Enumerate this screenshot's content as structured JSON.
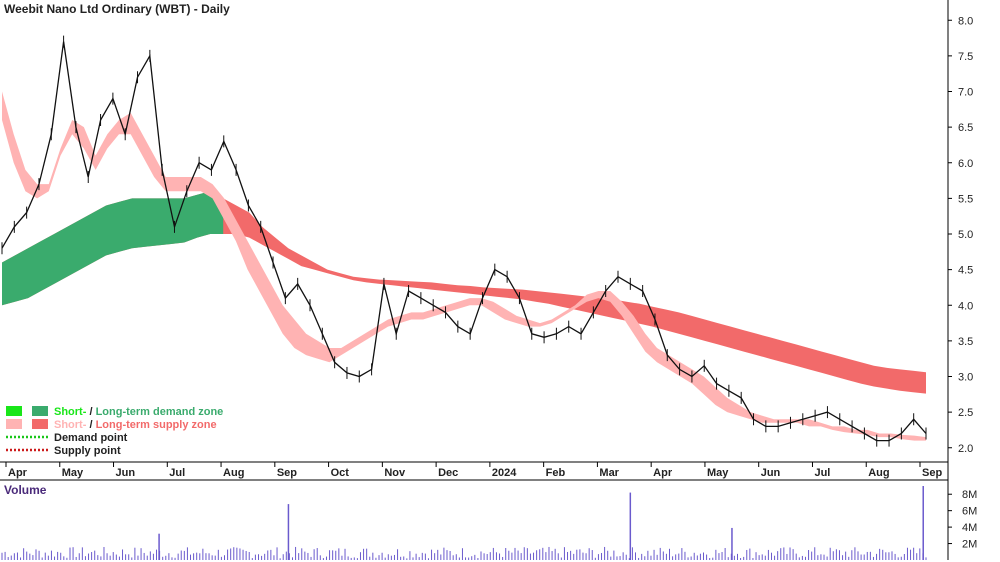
{
  "chart_data": {
    "type": "line",
    "title": "Weebit Nano Ltd Ordinary (WBT) - Daily",
    "x_labels": [
      "Apr",
      "May",
      "Jun",
      "Jul",
      "Aug",
      "Sep",
      "Oct",
      "Nov",
      "Dec",
      "2024",
      "Feb",
      "Mar",
      "Apr",
      "May",
      "Jun",
      "Jul",
      "Aug",
      "Sep"
    ],
    "y_ticks": [
      "8.0",
      "7.5",
      "7.0",
      "6.5",
      "6.0",
      "5.5",
      "5.0",
      "4.5",
      "4.0",
      "3.5",
      "3.0",
      "2.5",
      "2.0"
    ],
    "ylim": [
      1.8,
      8.2
    ],
    "price": [
      [
        "Apr",
        4.8
      ],
      [
        "",
        5.1
      ],
      [
        "",
        5.3
      ],
      [
        "",
        5.7
      ],
      [
        "",
        6.4
      ],
      [
        "May",
        7.7
      ],
      [
        "",
        6.5
      ],
      [
        "",
        5.8
      ],
      [
        "",
        6.6
      ],
      [
        "",
        6.9
      ],
      [
        "Jun",
        6.4
      ],
      [
        "",
        7.2
      ],
      [
        "",
        7.5
      ],
      [
        "",
        5.9
      ],
      [
        "",
        5.1
      ],
      [
        "Jul",
        5.6
      ],
      [
        "",
        6.0
      ],
      [
        "",
        5.9
      ],
      [
        "",
        6.3
      ],
      [
        "",
        5.9
      ],
      [
        "Aug",
        5.4
      ],
      [
        "",
        5.1
      ],
      [
        "",
        4.6
      ],
      [
        "",
        4.1
      ],
      [
        "",
        4.3
      ],
      [
        "Sep",
        4.0
      ],
      [
        "",
        3.6
      ],
      [
        "",
        3.2
      ],
      [
        "",
        3.05
      ],
      [
        "",
        3.0
      ],
      [
        "Oct",
        3.1
      ],
      [
        "",
        4.3
      ],
      [
        "",
        3.6
      ],
      [
        "",
        4.2
      ],
      [
        "",
        4.1
      ],
      [
        "Nov",
        4.0
      ],
      [
        "",
        3.9
      ],
      [
        "",
        3.7
      ],
      [
        "",
        3.6
      ],
      [
        "",
        4.1
      ],
      [
        "Dec",
        4.5
      ],
      [
        "",
        4.4
      ],
      [
        "",
        4.1
      ],
      [
        "",
        3.6
      ],
      [
        "",
        3.55
      ],
      [
        "2024",
        3.6
      ],
      [
        "",
        3.7
      ],
      [
        "",
        3.6
      ],
      [
        "",
        3.9
      ],
      [
        "",
        4.2
      ],
      [
        "Feb",
        4.4
      ],
      [
        "",
        4.3
      ],
      [
        "",
        4.2
      ],
      [
        "",
        3.8
      ],
      [
        "",
        3.3
      ],
      [
        "Mar",
        3.1
      ],
      [
        "",
        3.0
      ],
      [
        "",
        3.15
      ],
      [
        "",
        2.9
      ],
      [
        "",
        2.8
      ],
      [
        "Apr",
        2.7
      ],
      [
        "",
        2.4
      ],
      [
        "",
        2.3
      ],
      [
        "",
        2.3
      ],
      [
        "",
        2.35
      ],
      [
        "May",
        2.4
      ],
      [
        "",
        2.45
      ],
      [
        "",
        2.5
      ],
      [
        "",
        2.4
      ],
      [
        "",
        2.3
      ],
      [
        "Jun",
        2.2
      ],
      [
        "",
        2.1
      ],
      [
        "",
        2.1
      ],
      [
        "",
        2.2
      ],
      [
        "",
        2.4
      ],
      [
        "Jul",
        2.2
      ]
    ],
    "short_zone_upper": [
      7.0,
      6.4,
      5.9,
      5.7,
      5.7,
      6.2,
      6.6,
      6.5,
      6.1,
      6.4,
      6.6,
      6.7,
      6.4,
      6.1,
      5.8,
      5.8,
      5.8,
      5.8,
      5.7,
      5.5,
      5.2,
      4.9,
      4.6,
      4.3,
      4.0,
      3.8,
      3.6,
      3.5,
      3.4,
      3.4,
      3.5,
      3.6,
      3.7,
      3.8,
      3.85,
      3.9,
      3.9,
      3.95,
      4.0,
      4.05,
      4.1,
      4.1,
      4.05,
      3.95,
      3.85,
      3.8,
      3.75,
      3.8,
      3.9,
      4.0,
      4.15,
      4.2,
      4.2,
      4.05,
      3.85,
      3.6,
      3.4,
      3.3,
      3.2,
      3.1,
      3.0,
      2.85,
      2.7,
      2.6,
      2.5,
      2.45,
      2.4,
      2.4,
      2.4,
      2.4,
      2.35,
      2.3,
      2.3,
      2.25,
      2.25,
      2.2,
      2.2,
      2.18,
      2.17,
      2.15
    ],
    "short_zone_lower": [
      6.6,
      6.0,
      5.6,
      5.5,
      5.6,
      6.1,
      6.4,
      6.2,
      5.9,
      6.2,
      6.4,
      6.4,
      6.1,
      5.8,
      5.6,
      5.6,
      5.6,
      5.6,
      5.5,
      5.2,
      4.9,
      4.5,
      4.2,
      3.9,
      3.6,
      3.4,
      3.3,
      3.25,
      3.2,
      3.3,
      3.4,
      3.5,
      3.6,
      3.7,
      3.75,
      3.8,
      3.8,
      3.85,
      3.9,
      3.95,
      4.0,
      4.0,
      3.9,
      3.8,
      3.75,
      3.7,
      3.7,
      3.75,
      3.85,
      3.95,
      4.05,
      4.1,
      4.05,
      3.85,
      3.6,
      3.35,
      3.2,
      3.1,
      3.0,
      2.9,
      2.75,
      2.6,
      2.5,
      2.45,
      2.4,
      2.35,
      2.35,
      2.35,
      2.35,
      2.3,
      2.3,
      2.25,
      2.22,
      2.2,
      2.18,
      2.15,
      2.15,
      2.12,
      2.1,
      2.1
    ],
    "long_zone_upper": [
      4.6,
      4.7,
      4.8,
      4.9,
      5.0,
      5.1,
      5.2,
      5.3,
      5.4,
      5.45,
      5.5,
      5.5,
      5.5,
      5.5,
      5.5,
      5.55,
      5.6,
      5.5,
      5.4,
      5.3,
      5.1,
      4.95,
      4.8,
      4.7,
      4.6,
      4.5,
      4.45,
      4.4,
      4.38,
      4.36,
      4.35,
      4.34,
      4.33,
      4.32,
      4.3,
      4.28,
      4.27,
      4.25,
      4.24,
      4.23,
      4.22,
      4.2,
      4.18,
      4.16,
      4.14,
      4.12,
      4.1,
      4.08,
      4.05,
      4.02,
      3.98,
      3.94,
      3.9,
      3.85,
      3.8,
      3.75,
      3.7,
      3.65,
      3.6,
      3.55,
      3.5,
      3.45,
      3.4,
      3.35,
      3.3,
      3.25,
      3.2,
      3.15,
      3.12,
      3.1,
      3.08,
      3.06
    ],
    "long_zone_lower": [
      4.0,
      4.05,
      4.1,
      4.2,
      4.3,
      4.4,
      4.5,
      4.6,
      4.7,
      4.75,
      4.8,
      4.82,
      4.84,
      4.86,
      4.88,
      4.95,
      5.0,
      5.0,
      5.0,
      4.95,
      4.85,
      4.75,
      4.65,
      4.55,
      4.5,
      4.45,
      4.4,
      4.35,
      4.32,
      4.3,
      4.28,
      4.26,
      4.24,
      4.22,
      4.2,
      4.18,
      4.16,
      4.14,
      4.12,
      4.1,
      4.08,
      4.05,
      4.02,
      3.98,
      3.94,
      3.9,
      3.86,
      3.82,
      3.78,
      3.74,
      3.7,
      3.65,
      3.6,
      3.55,
      3.5,
      3.45,
      3.4,
      3.35,
      3.3,
      3.25,
      3.2,
      3.15,
      3.1,
      3.05,
      3.0,
      2.95,
      2.9,
      2.86,
      2.83,
      2.8,
      2.78,
      2.76
    ],
    "volume_label": "Volume",
    "volume_ticks": [
      "8M",
      "6M",
      "4M",
      "2M"
    ],
    "volume_max": 9,
    "volume_spikes": [
      {
        "pos": 0.17,
        "v": 3.2
      },
      {
        "pos": 0.31,
        "v": 6.8
      },
      {
        "pos": 0.68,
        "v": 8.2
      },
      {
        "pos": 0.79,
        "v": 3.9
      },
      {
        "pos": 0.997,
        "v": 9.0
      }
    ],
    "legend": [
      {
        "text": "Short- / Long-term demand zone",
        "short": "Short-",
        "long": "Long-term demand zone",
        "colors": [
          "#19e619",
          "#3aab6d"
        ]
      },
      {
        "text": "Short- / Long-term supply zone",
        "short": "Short-",
        "long": "Long-term supply zone",
        "colors": [
          "#ffb3b3",
          "#f26a6a"
        ]
      },
      {
        "text": "Demand point",
        "dotted": "#19c619"
      },
      {
        "text": "Supply point",
        "dotted": "#cc1a1a"
      }
    ]
  },
  "colors": {
    "demand_short": "#19e619",
    "demand_long": "#3aab6d",
    "supply_short": "#ffb3b3",
    "supply_long": "#f26a6a",
    "orange": "#f26a1a",
    "price": "#111111",
    "volume": "#6a5acd"
  }
}
